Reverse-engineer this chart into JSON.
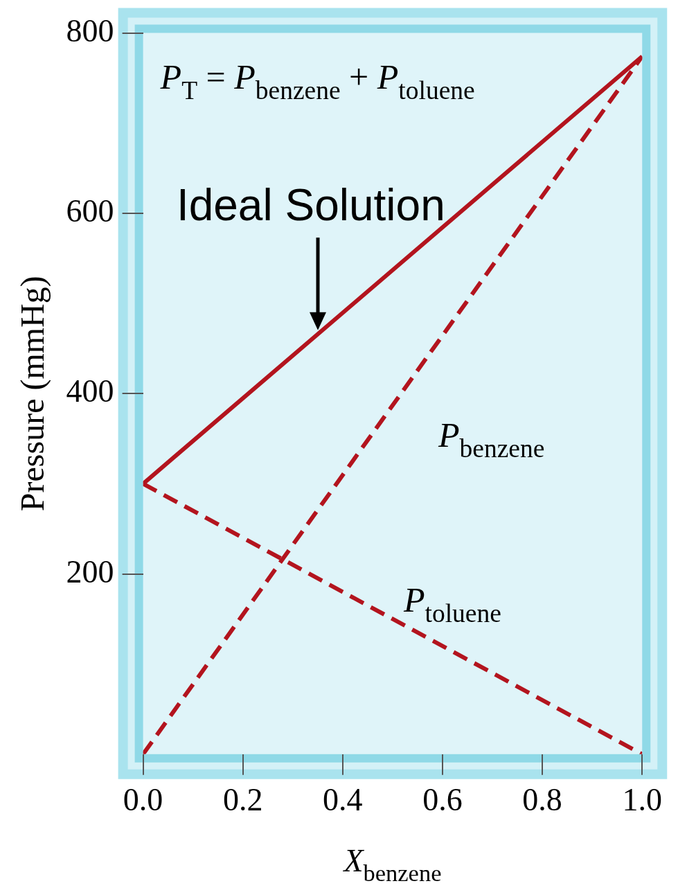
{
  "chart_data": {
    "type": "line",
    "xlabel": "X$_{benzene}$",
    "ylabel": "Pressure (mmHg)",
    "x": [
      0,
      1
    ],
    "series": [
      {
        "color": "#b3141e",
        "values": [
          300,
          774
        ],
        "line_style": "solid"
      },
      {
        "name": "P$_{benzene}$",
        "color": "#b3141e",
        "values": [
          0,
          774
        ],
        "line_style": "dashed"
      },
      {
        "name": "P$_{toluene}$",
        "color": "#b3141e",
        "values": [
          300,
          0
        ],
        "line_style": "dashed"
      }
    ],
    "xlim": [
      0,
      1
    ],
    "ylim": [
      0,
      800
    ],
    "xticks": [
      {
        "value": 0,
        "label": "0.0"
      },
      {
        "value": 0.2,
        "label": "0.2"
      },
      {
        "value": 0.4,
        "label": "0.4"
      },
      {
        "value": 0.6,
        "label": "0.6"
      },
      {
        "value": 0.8,
        "label": "0.8"
      },
      {
        "value": 1,
        "label": "1.0"
      }
    ],
    "yticks": [
      200,
      400,
      600,
      800
    ],
    "annotations": [
      "P$_{T}$ = P$_{benzene}$ + P$_{toluene}$",
      {
        "text": "Ideal Solution",
        "x": 0.35,
        "y": 466
      }
    ],
    "marker": "none",
    "legend": false,
    "grid": false
  }
}
